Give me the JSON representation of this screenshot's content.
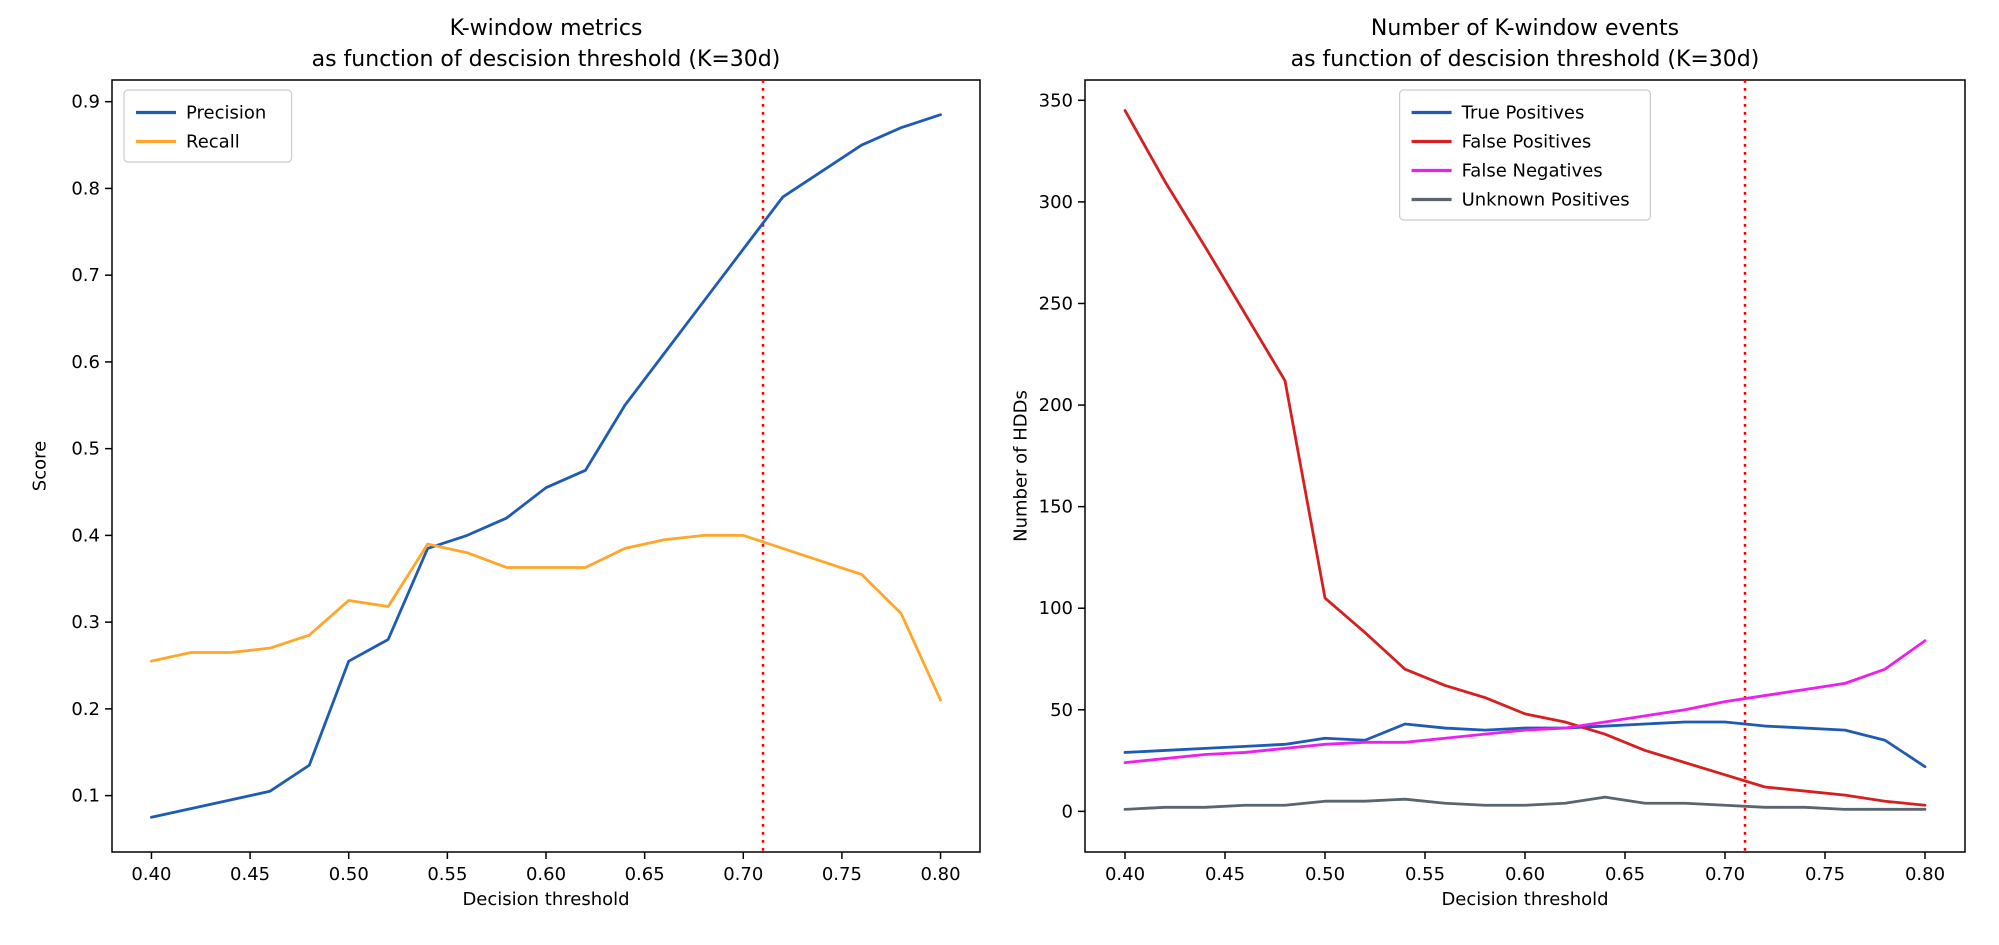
{
  "figure": {
    "background": "#ffffff",
    "vline_color": "#ff0000"
  },
  "chart_data": [
    {
      "type": "line",
      "title": "K-window metrics\nas function of descision threshold (K=30d)",
      "xlabel": "Decision threshold",
      "ylabel": "Score",
      "xlim": [
        0.38,
        0.82
      ],
      "ylim": [
        0.035,
        0.925
      ],
      "xticks": {
        "values": [
          0.4,
          0.45,
          0.5,
          0.55,
          0.6,
          0.65,
          0.7,
          0.75,
          0.8
        ],
        "labels": [
          "0.40",
          "0.45",
          "0.50",
          "0.55",
          "0.60",
          "0.65",
          "0.70",
          "0.75",
          "0.80"
        ]
      },
      "yticks": {
        "values": [
          0.1,
          0.2,
          0.3,
          0.4,
          0.5,
          0.6,
          0.7,
          0.8,
          0.9
        ],
        "labels": [
          "0.1",
          "0.2",
          "0.3",
          "0.4",
          "0.5",
          "0.6",
          "0.7",
          "0.8",
          "0.9"
        ]
      },
      "x": [
        0.4,
        0.42,
        0.44,
        0.46,
        0.48,
        0.5,
        0.52,
        0.54,
        0.56,
        0.58,
        0.6,
        0.62,
        0.64,
        0.66,
        0.68,
        0.7,
        0.72,
        0.74,
        0.76,
        0.78,
        0.8
      ],
      "series": [
        {
          "name": "Precision",
          "color": "#1f5bb5",
          "values": [
            0.075,
            0.085,
            0.095,
            0.105,
            0.135,
            0.255,
            0.28,
            0.385,
            0.4,
            0.42,
            0.455,
            0.475,
            0.55,
            0.61,
            0.67,
            0.73,
            0.79,
            0.82,
            0.85,
            0.87,
            0.885
          ]
        },
        {
          "name": "Recall",
          "color": "#ffa62b",
          "values": [
            0.255,
            0.265,
            0.265,
            0.27,
            0.285,
            0.325,
            0.318,
            0.39,
            0.38,
            0.363,
            0.363,
            0.363,
            0.385,
            0.395,
            0.4,
            0.4,
            0.385,
            0.37,
            0.355,
            0.31,
            0.21
          ]
        }
      ],
      "vline": {
        "x": 0.71,
        "color": "#ff0000",
        "style": "dotted"
      },
      "legend": {
        "position": "upper-left"
      }
    },
    {
      "type": "line",
      "title": "Number of K-window events\nas function of descision threshold (K=30d)",
      "xlabel": "Decision threshold",
      "ylabel": "Number of HDDs",
      "xlim": [
        0.38,
        0.82
      ],
      "ylim": [
        -20,
        360
      ],
      "xticks": {
        "values": [
          0.4,
          0.45,
          0.5,
          0.55,
          0.6,
          0.65,
          0.7,
          0.75,
          0.8
        ],
        "labels": [
          "0.40",
          "0.45",
          "0.50",
          "0.55",
          "0.60",
          "0.65",
          "0.70",
          "0.75",
          "0.80"
        ]
      },
      "yticks": {
        "values": [
          0,
          50,
          100,
          150,
          200,
          250,
          300,
          350
        ],
        "labels": [
          "0",
          "50",
          "100",
          "150",
          "200",
          "250",
          "300",
          "350"
        ]
      },
      "x": [
        0.4,
        0.42,
        0.44,
        0.46,
        0.48,
        0.5,
        0.52,
        0.54,
        0.56,
        0.58,
        0.6,
        0.62,
        0.64,
        0.66,
        0.68,
        0.7,
        0.72,
        0.74,
        0.76,
        0.78,
        0.8
      ],
      "series": [
        {
          "name": "True Positives",
          "color": "#1f5bb5",
          "values": [
            29,
            30,
            31,
            32,
            33,
            36,
            35,
            43,
            41,
            40,
            41,
            41,
            42,
            43,
            44,
            44,
            42,
            41,
            40,
            35,
            22
          ]
        },
        {
          "name": "False Positives",
          "color": "#d62020",
          "values": [
            345,
            310,
            278,
            245,
            212,
            105,
            88,
            70,
            62,
            56,
            48,
            44,
            38,
            30,
            24,
            18,
            12,
            10,
            8,
            5,
            3
          ]
        },
        {
          "name": "False Negatives",
          "color": "#ed1fed",
          "values": [
            24,
            26,
            28,
            29,
            31,
            33,
            34,
            34,
            36,
            38,
            40,
            41,
            44,
            47,
            50,
            54,
            57,
            60,
            63,
            70,
            84
          ]
        },
        {
          "name": "Unknown Positives",
          "color": "#5a6570",
          "values": [
            1,
            2,
            2,
            3,
            3,
            5,
            5,
            6,
            4,
            3,
            3,
            4,
            7,
            4,
            4,
            3,
            2,
            2,
            1,
            1,
            1
          ]
        }
      ],
      "vline": {
        "x": 0.71,
        "color": "#ff0000",
        "style": "dotted"
      },
      "legend": {
        "position": "upper-center"
      }
    }
  ]
}
